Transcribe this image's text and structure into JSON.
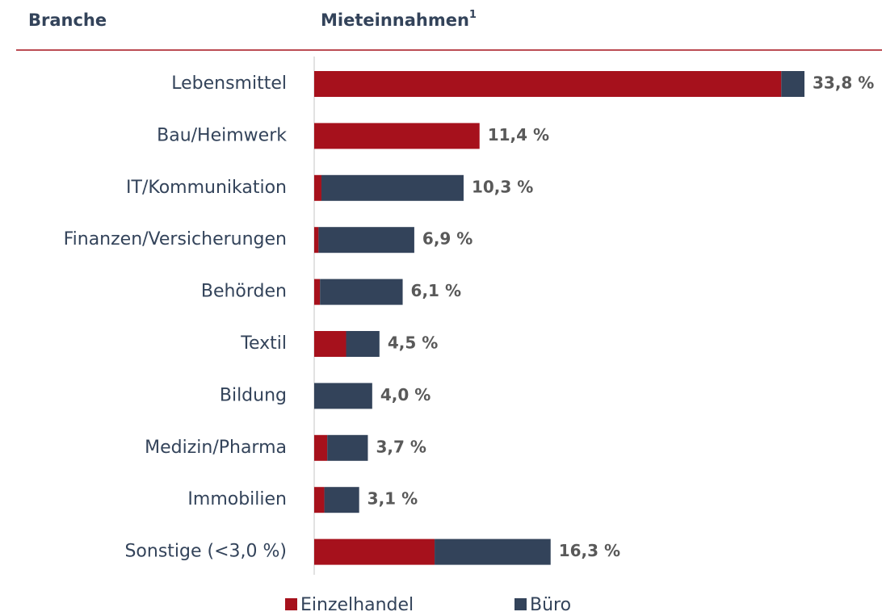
{
  "chart_data": {
    "type": "stacked-barh",
    "column_headers": [
      "Branche",
      "Mieteinnahmen"
    ],
    "footnote_marker": "1",
    "categories": [
      "Lebensmittel",
      "Bau/Heimwerk",
      "IT/Kommunikation",
      "Finanzen/Versicherungen",
      "Behörden",
      "Textil",
      "Bildung",
      "Medizin/Pharma",
      "Immobilien",
      "Sonstige (<3,0 %)"
    ],
    "series": [
      {
        "name": "Einzelhandel",
        "color": "#a6111c",
        "values": [
          32.2,
          11.4,
          0.5,
          0.3,
          0.4,
          2.2,
          0,
          0.9,
          0.7,
          8.3
        ]
      },
      {
        "name": "Büro",
        "color": "#33435a",
        "values": [
          1.6,
          0,
          9.8,
          6.6,
          5.7,
          2.3,
          4.0,
          2.8,
          2.4,
          8.0
        ]
      }
    ],
    "totals": [
      33.8,
      11.4,
      10.3,
      6.9,
      6.1,
      4.5,
      4.0,
      3.7,
      3.1,
      16.3
    ],
    "total_labels": [
      "33,8 %",
      "11,4 %",
      "10,3 %",
      "6,9 %",
      "6,1 %",
      "4,5 %",
      "4,0 %",
      "3,7 %",
      "3,1 %",
      "16,3 %"
    ],
    "xlim": [
      0,
      34
    ]
  }
}
